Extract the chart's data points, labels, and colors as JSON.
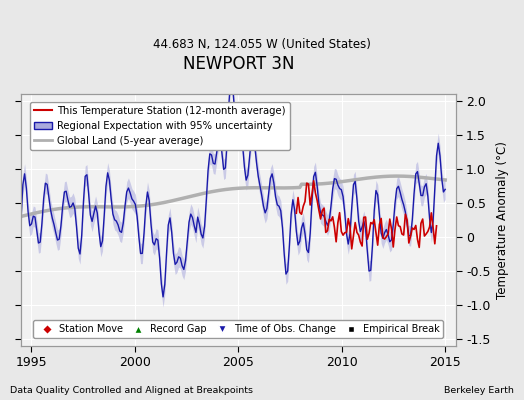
{
  "title": "NEWPORT 3N",
  "subtitle": "44.683 N, 124.055 W (United States)",
  "ylabel": "Temperature Anomaly (°C)",
  "xlabel_left": "Data Quality Controlled and Aligned at Breakpoints",
  "xlabel_right": "Berkeley Earth",
  "ylim": [
    -1.6,
    2.1
  ],
  "xlim": [
    1994.5,
    2015.5
  ],
  "yticks": [
    -1.5,
    -1.0,
    -0.5,
    0.0,
    0.5,
    1.0,
    1.5,
    2.0
  ],
  "xticks": [
    1995,
    2000,
    2005,
    2010,
    2015
  ],
  "bg_color": "#e8e8e8",
  "plot_bg_color": "#f2f2f2",
  "red_color": "#cc0000",
  "blue_color": "#1a1aaa",
  "blue_fill_color": "#aaaadd",
  "gray_color": "#b0b0b0",
  "grid_color": "#ffffff"
}
